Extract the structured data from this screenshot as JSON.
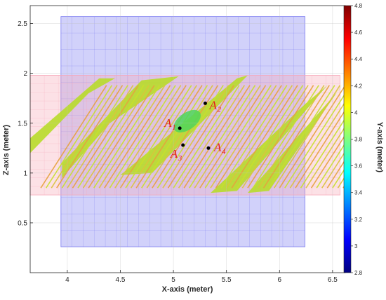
{
  "chart_data": {
    "type": "scatter",
    "title": "",
    "xlabel": "X-axis (meter)",
    "ylabel": "Z-axis (meter)",
    "colorbar_label": "Y-axis (meter)",
    "xlim": [
      3.65,
      6.62
    ],
    "ylim": [
      0,
      2.68
    ],
    "xticks": [
      "4",
      "4.5",
      "5",
      "5.5",
      "6",
      "6.5"
    ],
    "yticks": [
      "0.5",
      "1",
      "1.5",
      "2",
      "2.5"
    ],
    "colorbar_ticks": [
      "2.8",
      "3",
      "3.2",
      "3.4",
      "3.6",
      "3.8",
      "4",
      "4.2",
      "4.4",
      "4.6",
      "4.8"
    ],
    "colorbar_range": [
      2.8,
      4.8
    ],
    "grid": true,
    "planes": [
      {
        "name": "blue-plane",
        "color": "#7b7bf0",
        "x": [
          3.94,
          6.24
        ],
        "z": [
          0.26,
          2.57
        ]
      },
      {
        "name": "pink-plane",
        "color": "#f7a8b8",
        "x": [
          3.65,
          6.57
        ],
        "z": [
          0.78,
          1.98
        ]
      }
    ],
    "points": [
      {
        "label": "A",
        "sub": "1",
        "x": 5.06,
        "z": 1.45
      },
      {
        "label": "A",
        "sub": "2",
        "x": 5.3,
        "z": 1.7
      },
      {
        "label": "A",
        "sub": "3",
        "x": 5.09,
        "z": 1.28
      },
      {
        "label": "A",
        "sub": "4",
        "x": 5.33,
        "z": 1.25
      }
    ]
  }
}
